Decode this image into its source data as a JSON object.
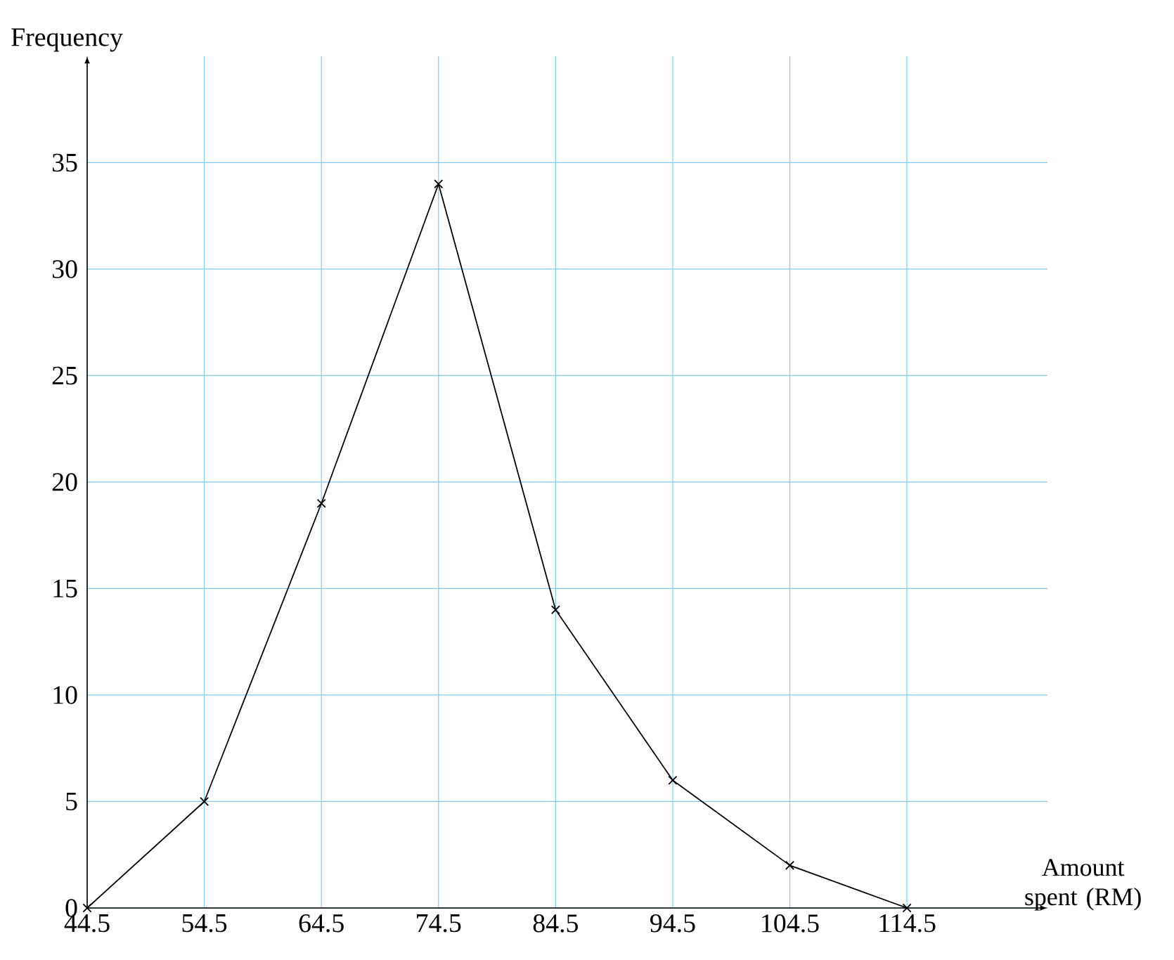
{
  "chart_data": {
    "type": "line",
    "xlabel": "Amount spent (RM)",
    "ylabel": "Frequency",
    "x": [
      44.5,
      54.5,
      64.5,
      74.5,
      84.5,
      94.5,
      104.5,
      114.5
    ],
    "values": [
      0,
      5,
      19,
      34,
      14,
      6,
      2,
      0
    ],
    "color": "#000000",
    "marker": "cross",
    "line_style": "solid",
    "grid": true,
    "xlim": [
      44.5,
      126.5
    ],
    "ylim": [
      0,
      40
    ],
    "xticks": [
      44.5,
      54.5,
      64.5,
      74.5,
      84.5,
      94.5,
      104.5,
      114.5
    ],
    "yticks": [
      0,
      5,
      10,
      15,
      20,
      25,
      30,
      35
    ]
  }
}
